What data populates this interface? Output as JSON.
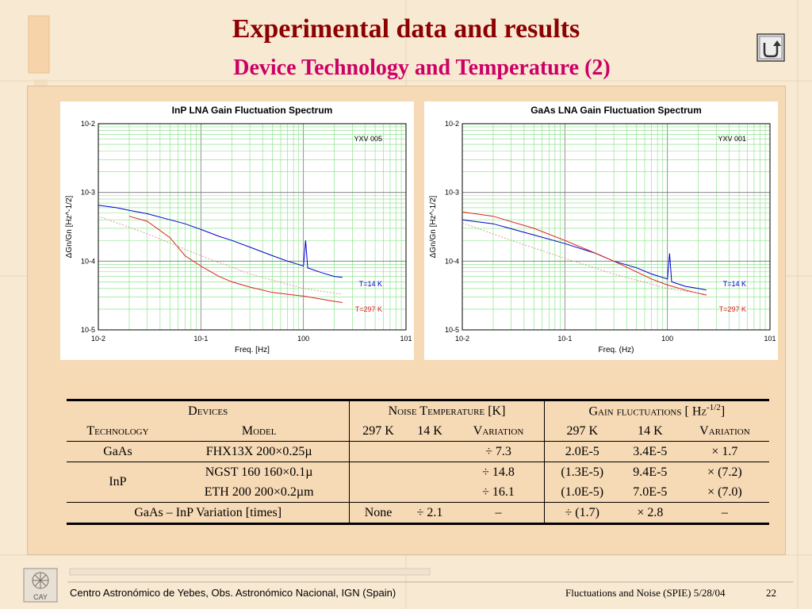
{
  "slide": {
    "title": "Experimental data and results",
    "subtitle": "Device Technology and Temperature (2)",
    "return_icon": "u-turn-return-icon"
  },
  "chart_data": [
    {
      "type": "line",
      "title": "InP LNA Gain Fluctuation Spectrum",
      "annotation": "YXV 005",
      "xlabel": "Freq. [Hz]",
      "ylabel": "ΔGn/Gn [Hz^-1/2]",
      "xscale": "log",
      "yscale": "log",
      "xlim": [
        0.01,
        10
      ],
      "ylim": [
        1e-05,
        0.01
      ],
      "x_ticks": [
        "10-2",
        "10-1",
        "100",
        "101"
      ],
      "y_ticks": [
        "10-2",
        "10-3",
        "10-4",
        "10-5"
      ],
      "grid": true,
      "series": [
        {
          "name": "T=14 K",
          "color": "#0000cc",
          "points": [
            [
              0.01,
              0.00065
            ],
            [
              0.015,
              0.0006
            ],
            [
              0.02,
              0.00055
            ],
            [
              0.03,
              0.00049
            ],
            [
              0.05,
              0.0004
            ],
            [
              0.07,
              0.00035
            ],
            [
              0.1,
              0.00029
            ],
            [
              0.15,
              0.00023
            ],
            [
              0.2,
              0.0002
            ],
            [
              0.3,
              0.00016
            ],
            [
              0.5,
              0.00012
            ],
            [
              0.7,
              0.0001
            ],
            [
              1.0,
              8.5e-05
            ],
            [
              1.05,
              0.0002
            ],
            [
              1.1,
              8e-05
            ],
            [
              1.5,
              6.8e-05
            ],
            [
              2.0,
              6e-05
            ],
            [
              2.4,
              5.8e-05
            ]
          ]
        },
        {
          "name": "T=297 K",
          "color": "#dd2222",
          "points": [
            [
              0.02,
              0.00045
            ],
            [
              0.03,
              0.00038
            ],
            [
              0.05,
              0.00022
            ],
            [
              0.07,
              0.00012
            ],
            [
              0.1,
              8.5e-05
            ],
            [
              0.15,
              6e-05
            ],
            [
              0.2,
              5e-05
            ],
            [
              0.3,
              4.2e-05
            ],
            [
              0.5,
              3.5e-05
            ],
            [
              0.7,
              3.3e-05
            ],
            [
              1.0,
              3.1e-05
            ],
            [
              1.5,
              2.8e-05
            ],
            [
              2.0,
              2.6e-05
            ],
            [
              2.4,
              2.5e-05
            ]
          ]
        },
        {
          "name": "fit",
          "color": "#e09090",
          "dashed": true,
          "points": [
            [
              0.01,
              0.00045
            ],
            [
              0.03,
              0.00025
            ],
            [
              0.1,
              0.00012
            ],
            [
              0.3,
              6.5e-05
            ],
            [
              1.0,
              4e-05
            ],
            [
              2.4,
              3.3e-05
            ]
          ]
        }
      ]
    },
    {
      "type": "line",
      "title": "GaAs LNA Gain Fluctuation Spectrum",
      "annotation": "YXV 001",
      "xlabel": "Freq. (Hz)",
      "ylabel": "ΔGn/Gn [Hz^-1/2]",
      "xscale": "log",
      "yscale": "log",
      "xlim": [
        0.01,
        10
      ],
      "ylim": [
        1e-05,
        0.01
      ],
      "x_ticks": [
        "10-2",
        "10-1",
        "100",
        "101"
      ],
      "y_ticks": [
        "10-2",
        "10-3",
        "10-4",
        "10-5"
      ],
      "grid": true,
      "series": [
        {
          "name": "T=14 K",
          "color": "#0000cc",
          "points": [
            [
              0.01,
              0.0004
            ],
            [
              0.02,
              0.00035
            ],
            [
              0.05,
              0.00024
            ],
            [
              0.1,
              0.00018
            ],
            [
              0.2,
              0.00013
            ],
            [
              0.3,
              0.0001
            ],
            [
              0.5,
              8e-05
            ],
            [
              0.7,
              6.5e-05
            ],
            [
              1.0,
              5.5e-05
            ],
            [
              1.05,
              0.00013
            ],
            [
              1.1,
              5e-05
            ],
            [
              1.5,
              4.3e-05
            ],
            [
              2.0,
              4e-05
            ],
            [
              2.4,
              3.8e-05
            ]
          ]
        },
        {
          "name": "T=297 K",
          "color": "#dd2222",
          "points": [
            [
              0.01,
              0.00052
            ],
            [
              0.02,
              0.00045
            ],
            [
              0.05,
              0.0003
            ],
            [
              0.1,
              0.0002
            ],
            [
              0.2,
              0.00013
            ],
            [
              0.3,
              0.0001
            ],
            [
              0.5,
              7e-05
            ],
            [
              0.7,
              5.5e-05
            ],
            [
              1.0,
              4.5e-05
            ],
            [
              1.5,
              3.8e-05
            ],
            [
              2.0,
              3.4e-05
            ],
            [
              2.4,
              3.2e-05
            ]
          ]
        },
        {
          "name": "fit",
          "color": "#e09090",
          "dashed": true,
          "points": [
            [
              0.01,
              0.00036
            ],
            [
              0.03,
              0.0002
            ],
            [
              0.1,
              0.00011
            ],
            [
              0.3,
              6.5e-05
            ],
            [
              1.0,
              4e-05
            ],
            [
              2.4,
              3.3e-05
            ]
          ]
        }
      ]
    }
  ],
  "table": {
    "groups": {
      "devices": "Devices",
      "noise": "Noise Temperature [K]",
      "gain_prefix": "Gain fluctuations [ ",
      "gain_unit": "Hz",
      "gain_exp": "-1/2",
      "gain_suffix": "]"
    },
    "sub": {
      "technology": "Technology",
      "model": "Model",
      "t297": "297 K",
      "t14": "14 K",
      "variation": "Variation",
      "g297": "297 K",
      "g14": "14 K",
      "gvariation": "Variation"
    },
    "rows": {
      "gaas": {
        "tech": "GaAs",
        "model": "FHX13X  200×0.25µ",
        "nvar": "÷ 7.3",
        "g297": "2.0E-5",
        "g14": "3.4E-5",
        "gvar": "× 1.7"
      },
      "inp": {
        "tech": "InP"
      },
      "ngst": {
        "model": "NGST 160  160×0.1µ",
        "nvar": "÷ 14.8",
        "g297": "(1.3E-5)",
        "g14": "9.4E-5",
        "gvar": "× (7.2)"
      },
      "eth": {
        "model": "ETH 200  200×0.2µm",
        "nvar": "÷ 16.1",
        "g297": "(1.0E-5)",
        "g14": "7.0E-5",
        "gvar": "× (7.0)"
      },
      "variation": {
        "label": "GaAs – InP Variation [times]",
        "n297": "None",
        "n14": "÷ 2.1",
        "nvar": "–",
        "g297": "÷ (1.7)",
        "g14": "× 2.8",
        "gvar": "–"
      }
    }
  },
  "footer": {
    "left": "Centro Astronómico de Yebes, Obs. Astronómico Nacional, IGN (Spain)",
    "right": "Fluctuations and Noise (SPIE)  5/28/04",
    "page": "22",
    "logo_text": "CAY",
    "logo_icon": "cay-logo-icon"
  },
  "colors": {
    "title": "#8b0000",
    "subtitle": "#cc0066",
    "panel": "#f6d9b5",
    "background": "#f8e9d2"
  }
}
